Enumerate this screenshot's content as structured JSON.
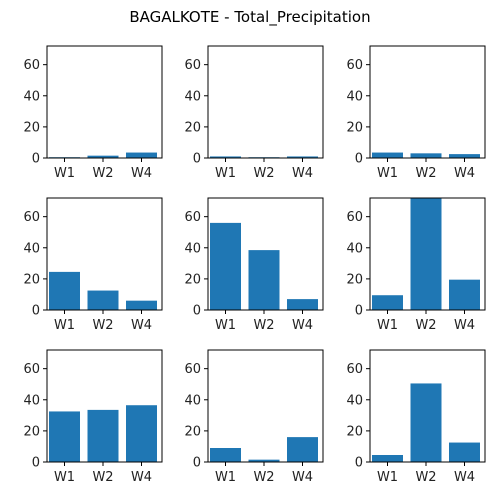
{
  "figure": {
    "title": "BAGALKOTE - Total_Precipitation",
    "bar_color": "#1f77b4",
    "axis_color": "#000000"
  },
  "chart_data": [
    {
      "type": "bar",
      "categories": [
        "W1",
        "W2",
        "W4"
      ],
      "values": [
        0.5,
        1.5,
        3.5
      ],
      "ylim": [
        0,
        72
      ],
      "yticks": [
        0,
        20,
        40,
        60
      ]
    },
    {
      "type": "bar",
      "categories": [
        "W1",
        "W2",
        "W4"
      ],
      "values": [
        1.0,
        0.5,
        1.0
      ],
      "ylim": [
        0,
        72
      ],
      "yticks": [
        0,
        20,
        40,
        60
      ]
    },
    {
      "type": "bar",
      "categories": [
        "W1",
        "W2",
        "W4"
      ],
      "values": [
        3.5,
        3.0,
        2.5
      ],
      "ylim": [
        0,
        72
      ],
      "yticks": [
        0,
        20,
        40,
        60
      ]
    },
    {
      "type": "bar",
      "categories": [
        "W1",
        "W2",
        "W4"
      ],
      "values": [
        24.5,
        12.5,
        6.0
      ],
      "ylim": [
        0,
        72
      ],
      "yticks": [
        0,
        20,
        40,
        60
      ]
    },
    {
      "type": "bar",
      "categories": [
        "W1",
        "W2",
        "W4"
      ],
      "values": [
        56.0,
        38.5,
        7.0
      ],
      "ylim": [
        0,
        72
      ],
      "yticks": [
        0,
        20,
        40,
        60
      ]
    },
    {
      "type": "bar",
      "categories": [
        "W1",
        "W2",
        "W4"
      ],
      "values": [
        9.5,
        72.0,
        19.5
      ],
      "ylim": [
        0,
        72
      ],
      "yticks": [
        0,
        20,
        40,
        60
      ]
    },
    {
      "type": "bar",
      "categories": [
        "W1",
        "W2",
        "W4"
      ],
      "values": [
        32.5,
        33.5,
        36.5
      ],
      "ylim": [
        0,
        72
      ],
      "yticks": [
        0,
        20,
        40,
        60
      ]
    },
    {
      "type": "bar",
      "categories": [
        "W1",
        "W2",
        "W4"
      ],
      "values": [
        9.0,
        1.5,
        16.0
      ],
      "ylim": [
        0,
        72
      ],
      "yticks": [
        0,
        20,
        40,
        60
      ]
    },
    {
      "type": "bar",
      "categories": [
        "W1",
        "W2",
        "W4"
      ],
      "values": [
        4.5,
        50.5,
        12.5
      ],
      "ylim": [
        0,
        72
      ],
      "yticks": [
        0,
        20,
        40,
        60
      ]
    }
  ]
}
